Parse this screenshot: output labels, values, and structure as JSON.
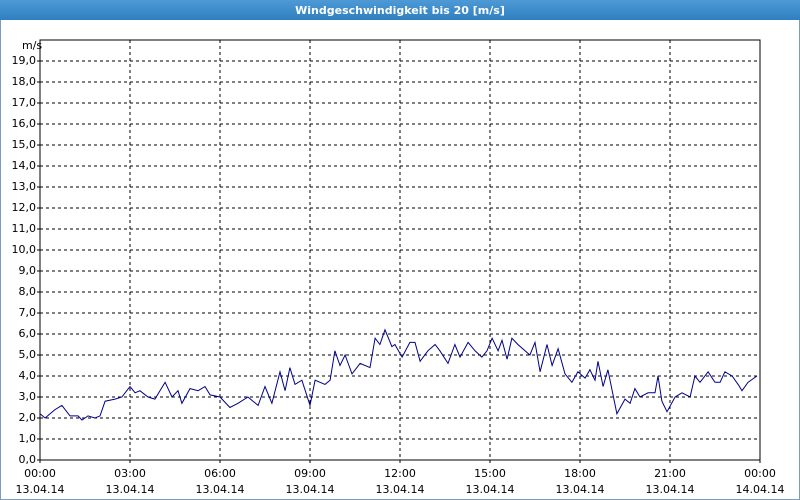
{
  "chart_data": {
    "type": "line",
    "title": "Windgeschwindigkeit bis 20 [m/s]",
    "y_axis_label": "m/s",
    "xlim": [
      0,
      24
    ],
    "ylim": [
      0,
      20
    ],
    "xticks": [
      {
        "value": 0,
        "label": "00:00"
      },
      {
        "value": 3,
        "label": "03:00"
      },
      {
        "value": 6,
        "label": "06:00"
      },
      {
        "value": 9,
        "label": "09:00"
      },
      {
        "value": 12,
        "label": "12:00"
      },
      {
        "value": 15,
        "label": "15:00"
      },
      {
        "value": 18,
        "label": "18:00"
      },
      {
        "value": 21,
        "label": "21:00"
      },
      {
        "value": 24,
        "label": "00:00"
      }
    ],
    "xtick_dates": [
      "13.04.14",
      "13.04.14",
      "13.04.14",
      "13.04.14",
      "13.04.14",
      "13.04.14",
      "13.04.14",
      "13.04.14",
      "14.04.14"
    ],
    "yticks": [
      {
        "value": 0,
        "label": "0,0"
      },
      {
        "value": 1,
        "label": "1,0"
      },
      {
        "value": 2,
        "label": "2,0"
      },
      {
        "value": 3,
        "label": "3,0"
      },
      {
        "value": 4,
        "label": "4,0"
      },
      {
        "value": 5,
        "label": "5,0"
      },
      {
        "value": 6,
        "label": "6,0"
      },
      {
        "value": 7,
        "label": "7,0"
      },
      {
        "value": 8,
        "label": "8,0"
      },
      {
        "value": 9,
        "label": "9,0"
      },
      {
        "value": 10,
        "label": "10,0"
      },
      {
        "value": 11,
        "label": "11,0"
      },
      {
        "value": 12,
        "label": "12,0"
      },
      {
        "value": 13,
        "label": "13,0"
      },
      {
        "value": 14,
        "label": "14,0"
      },
      {
        "value": 15,
        "label": "15,0"
      },
      {
        "value": 16,
        "label": "16,0"
      },
      {
        "value": 17,
        "label": "17,0"
      },
      {
        "value": 18,
        "label": "18,0"
      },
      {
        "value": 19,
        "label": "19,0"
      }
    ],
    "grid": true,
    "series": [
      {
        "color": "#00008b",
        "x": [
          0,
          0.17,
          0.5,
          0.73,
          1,
          1.27,
          1.4,
          1.6,
          1.83,
          2,
          2.17,
          2.5,
          2.73,
          3,
          3.17,
          3.33,
          3.6,
          3.83,
          4.17,
          4.4,
          4.6,
          4.73,
          5,
          5.27,
          5.5,
          5.67,
          6,
          6.33,
          6.6,
          6.93,
          7.27,
          7.5,
          7.73,
          8,
          8.17,
          8.33,
          8.5,
          8.73,
          9,
          9.17,
          9.5,
          9.67,
          9.83,
          10,
          10.17,
          10.4,
          10.67,
          11,
          11.17,
          11.33,
          11.5,
          11.73,
          11.83,
          12.07,
          12.33,
          12.5,
          12.67,
          12.93,
          13.17,
          13.33,
          13.6,
          13.83,
          14,
          14.27,
          14.5,
          14.73,
          14.9,
          15.07,
          15.27,
          15.4,
          15.57,
          15.73,
          15.93,
          16.33,
          16.5,
          16.67,
          16.9,
          17.07,
          17.27,
          17.5,
          17.73,
          17.93,
          18.17,
          18.33,
          18.5,
          18.6,
          18.77,
          18.93,
          19.23,
          19.5,
          19.67,
          19.83,
          20,
          20.27,
          20.5,
          20.6,
          20.73,
          20.9,
          21.17,
          21.4,
          21.67,
          21.83,
          22,
          22.27,
          22.5,
          22.67,
          22.83,
          23.07,
          23.27,
          23.4,
          23.6,
          23.9
        ],
        "values": [
          2.2,
          2.0,
          2.4,
          2.6,
          2.1,
          2.1,
          1.9,
          2.1,
          2.0,
          2.1,
          2.8,
          2.9,
          3.0,
          3.5,
          3.2,
          3.3,
          3.0,
          2.9,
          3.7,
          3.0,
          3.3,
          2.7,
          3.4,
          3.3,
          3.5,
          3.1,
          3.0,
          2.5,
          2.7,
          3.0,
          2.6,
          3.5,
          2.7,
          4.2,
          3.3,
          4.4,
          3.6,
          3.8,
          2.6,
          3.8,
          3.6,
          3.8,
          5.2,
          4.5,
          5.0,
          4.1,
          4.6,
          4.4,
          5.8,
          5.5,
          6.2,
          5.4,
          5.5,
          4.9,
          5.6,
          5.6,
          4.7,
          5.2,
          5.5,
          5.2,
          4.6,
          5.5,
          4.9,
          5.6,
          5.2,
          4.9,
          5.2,
          5.8,
          5.2,
          5.7,
          4.8,
          5.8,
          5.5,
          5.0,
          5.6,
          4.2,
          5.5,
          4.5,
          5.3,
          4.1,
          3.7,
          4.2,
          3.9,
          4.3,
          3.8,
          4.7,
          3.5,
          4.3,
          2.2,
          2.9,
          2.7,
          3.4,
          3.0,
          3.2,
          3.2,
          4.0,
          2.8,
          2.3,
          3.0,
          3.2,
          3.0,
          4.0,
          3.7,
          4.2,
          3.7,
          3.7,
          4.2,
          4.0,
          3.6,
          3.3,
          3.7,
          4.0
        ]
      }
    ]
  }
}
